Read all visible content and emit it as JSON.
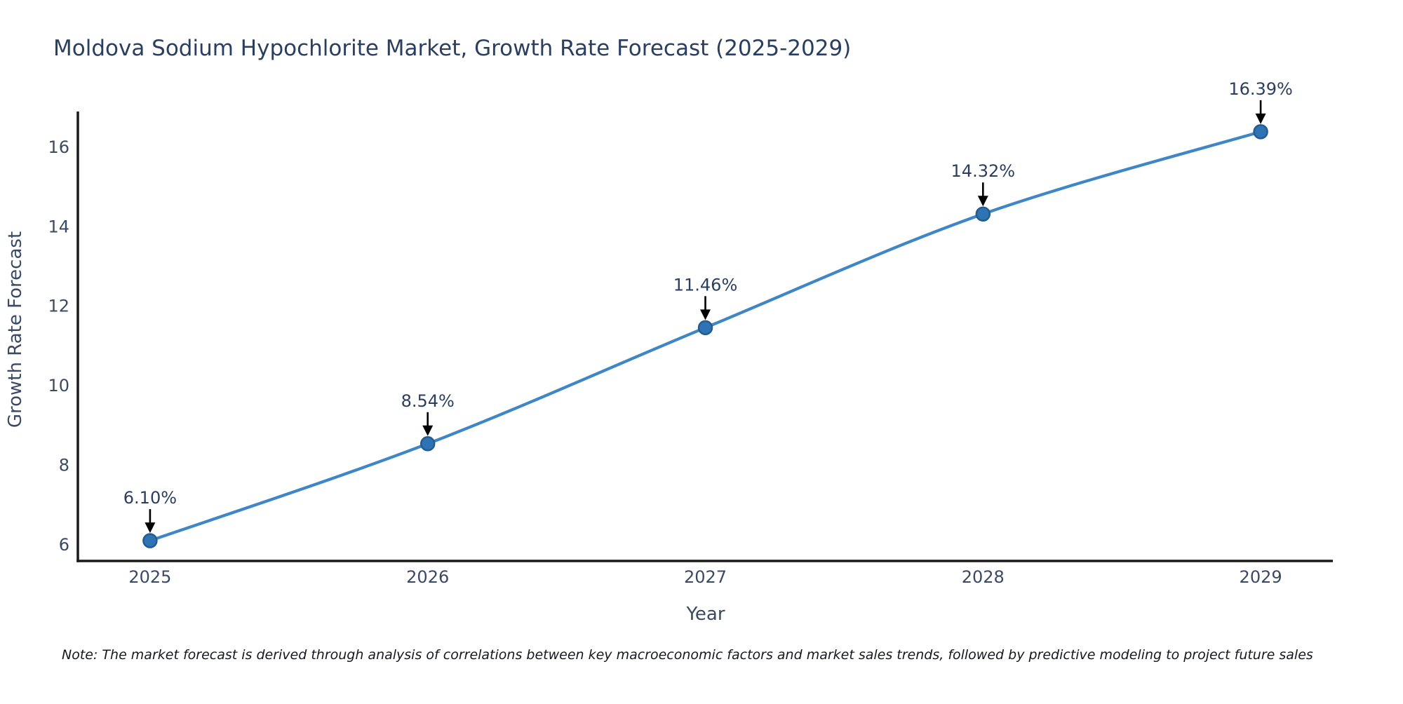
{
  "note": "Note: The market forecast is derived through analysis of correlations between key macroeconomic factors and market sales trends, followed by predictive modeling to project future sales",
  "chart_data": {
    "type": "line",
    "title": "Moldova Sodium Hypochlorite Market, Growth Rate Forecast (2025-2029)",
    "xlabel": "Year",
    "ylabel": "Growth Rate Forecast",
    "x": [
      2025,
      2026,
      2027,
      2028,
      2029
    ],
    "values": [
      6.1,
      8.54,
      11.46,
      14.32,
      16.39
    ],
    "point_labels": [
      "6.10%",
      "8.54%",
      "11.46%",
      "14.32%",
      "16.39%"
    ],
    "yticks": [
      6,
      8,
      10,
      12,
      14,
      16
    ],
    "xticks": [
      2025,
      2026,
      2027,
      2028,
      2029
    ],
    "xlim": [
      2024.74,
      2029.26
    ],
    "ylim": [
      5.59,
      16.9
    ],
    "grid": false,
    "legend": "none",
    "annotation_style": "value label above point with downward black arrow",
    "colors": {
      "line": "#3f86c6",
      "marker_fill": "#2e74b5",
      "marker_edge": "#235c91",
      "text": "#2a3f5f",
      "tick_text": "#3a4a63",
      "axis": "#1a1a1a",
      "arrow": "#000000",
      "note_text": "#16181d",
      "background": "#ffffff"
    }
  }
}
